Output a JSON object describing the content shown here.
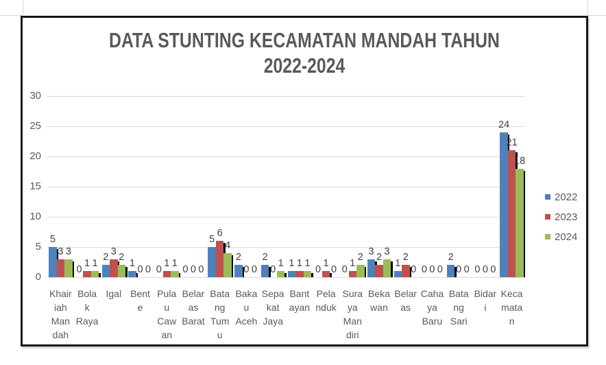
{
  "chart_data": {
    "type": "bar",
    "title": "DATA STUNTING KECAMATAN MANDAH TAHUN 2022-2024",
    "title_lines": [
      "DATA STUNTING KECAMATAN MANDAH TAHUN",
      "2022-2024"
    ],
    "categories": [
      "Khairiah Mandah",
      "Bolak Raya",
      "Igal",
      "Bente",
      "Pulau Cawan",
      "Belaras Barat",
      "Batang Tumu",
      "Bakau Aceh",
      "Sepakat Jaya",
      "Bantayan",
      "Pelanduk",
      "Suraya Mandiri",
      "Bekawan",
      "Belaras",
      "Cahaya Baru",
      "Batang Sari",
      "Bidari",
      "Kecamatan"
    ],
    "category_label_lines": [
      [
        "Khair",
        "iah",
        "Man",
        "dah"
      ],
      [
        "Bola",
        "k",
        "Raya"
      ],
      [
        "Igal"
      ],
      [
        "Bent",
        "e"
      ],
      [
        "Pula",
        "u",
        "Caw",
        "an"
      ],
      [
        "Belar",
        "as",
        "Barat"
      ],
      [
        "Bata",
        "ng",
        "Tum",
        "u"
      ],
      [
        "Baka",
        "u",
        "Aceh"
      ],
      [
        "Sepa",
        "kat",
        "Jaya"
      ],
      [
        "Bant",
        "ayan"
      ],
      [
        "Pela",
        "nduk"
      ],
      [
        "Sura",
        "ya",
        "Man",
        "diri"
      ],
      [
        "Beka",
        "wan"
      ],
      [
        "Belar",
        "as"
      ],
      [
        "Caha",
        "ya",
        "Baru"
      ],
      [
        "Bata",
        "ng",
        "Sari"
      ],
      [
        "Bidar",
        "i"
      ],
      [
        "Keca",
        "mata",
        "n"
      ]
    ],
    "series": [
      {
        "name": "2022",
        "color": "#4F81BD",
        "values": [
          5,
          0,
          2,
          1,
          0,
          0,
          5,
          2,
          2,
          1,
          0,
          0,
          3,
          1,
          0,
          2,
          0,
          24
        ]
      },
      {
        "name": "2023",
        "color": "#C0504D",
        "values": [
          3,
          1,
          3,
          0,
          1,
          0,
          6,
          0,
          0,
          1,
          1,
          1,
          2,
          2,
          0,
          0,
          0,
          21
        ]
      },
      {
        "name": "2024",
        "color": "#9BBB59",
        "values": [
          3,
          1,
          2,
          0,
          1,
          0,
          4,
          0,
          1,
          1,
          0,
          2,
          3,
          0,
          0,
          0,
          0,
          18
        ]
      }
    ],
    "ylim": [
      0,
      30
    ],
    "yticks": [
      0,
      5,
      10,
      15,
      20,
      25,
      30
    ],
    "grid": true,
    "legend_position": "right",
    "data_labels": true,
    "colors": {
      "gridline": "#d9d9d9",
      "axis_text": "#595959",
      "value_label": "#404040",
      "title_text": "#595959",
      "bar_shadow": "#000000",
      "frame": "#161616"
    }
  }
}
